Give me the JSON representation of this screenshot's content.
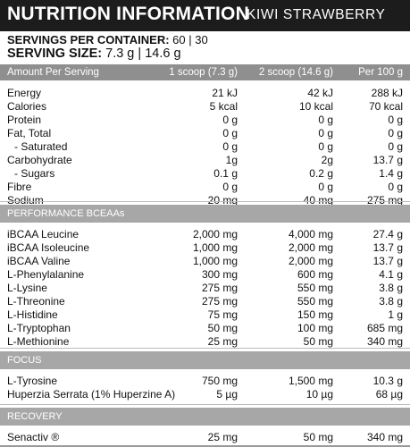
{
  "title": {
    "main": "NUTRITION INFORMATION",
    "flavour": "KIWI STRAWBERRY"
  },
  "servings": {
    "per_container_label": "SERVINGS PER CONTAINER:",
    "per_container_value": "60 | 30",
    "size_label": "SERVING SIZE:",
    "size_value": "7.3 g | 14.6 g"
  },
  "header": {
    "c0": "Amount Per Serving",
    "c1": "1 scoop (7.3 g)",
    "c2": "2 scoop (14.6 g)",
    "c3": "Per 100 g"
  },
  "nutrients": [
    {
      "name": "Energy",
      "v1": "21 kJ",
      "v2": "42 kJ",
      "v3": "288 kJ",
      "indent": false
    },
    {
      "name": "Calories",
      "v1": "5 kcal",
      "v2": "10 kcal",
      "v3": "70 kcal",
      "indent": false
    },
    {
      "name": "Protein",
      "v1": "0 g",
      "v2": "0 g",
      "v3": "0 g",
      "indent": false
    },
    {
      "name": "Fat, Total",
      "v1": "0 g",
      "v2": "0 g",
      "v3": "0 g",
      "indent": false
    },
    {
      "name": "- Saturated",
      "v1": "0 g",
      "v2": "0 g",
      "v3": "0 g",
      "indent": true
    },
    {
      "name": "Carbohydrate",
      "v1": "1g",
      "v2": "2g",
      "v3": "13.7 g",
      "indent": false
    },
    {
      "name": "- Sugars",
      "v1": "0.1 g",
      "v2": "0.2 g",
      "v3": "1.4 g",
      "indent": true
    },
    {
      "name": "Fibre",
      "v1": "0 g",
      "v2": "0 g",
      "v3": "0 g",
      "indent": false
    },
    {
      "name": "Sodium",
      "v1": "20 mg",
      "v2": "40 mg",
      "v3": "275 mg",
      "indent": false
    }
  ],
  "sections": [
    {
      "title": "PERFORMANCE BCEAAs",
      "rows": [
        {
          "name": "iBCAA Leucine",
          "v1": "2,000 mg",
          "v2": "4,000 mg",
          "v3": "27.4 g"
        },
        {
          "name": "iBCAA Isoleucine",
          "v1": "1,000 mg",
          "v2": "2,000 mg",
          "v3": "13.7 g"
        },
        {
          "name": "iBCAA Valine",
          "v1": "1,000 mg",
          "v2": "2,000 mg",
          "v3": "13.7 g"
        },
        {
          "name": "L-Phenylalanine",
          "v1": "300 mg",
          "v2": "600 mg",
          "v3": "4.1 g"
        },
        {
          "name": "L-Lysine",
          "v1": "275 mg",
          "v2": "550 mg",
          "v3": "3.8 g"
        },
        {
          "name": "L-Threonine",
          "v1": "275 mg",
          "v2": "550 mg",
          "v3": "3.8 g"
        },
        {
          "name": "L-Histidine",
          "v1": "75 mg",
          "v2": "150 mg",
          "v3": "1 g"
        },
        {
          "name": "L-Tryptophan",
          "v1": "50 mg",
          "v2": "100 mg",
          "v3": "685 mg"
        },
        {
          "name": "L-Methionine",
          "v1": "25 mg",
          "v2": "50 mg",
          "v3": "340 mg"
        }
      ]
    },
    {
      "title": "FOCUS",
      "rows": [
        {
          "name": "L-Tyrosine",
          "v1": "750 mg",
          "v2": "1,500 mg",
          "v3": "10.3 g"
        },
        {
          "name": "Huperzia Serrata (1% Huperzine A)",
          "v1": "5 µg",
          "v2": "10 µg",
          "v3": "68 µg"
        }
      ]
    },
    {
      "title": "RECOVERY",
      "rows": [
        {
          "name": "Senactiv ®",
          "v1": "25 mg",
          "v2": "50 mg",
          "v3": "340 mg"
        }
      ]
    }
  ]
}
